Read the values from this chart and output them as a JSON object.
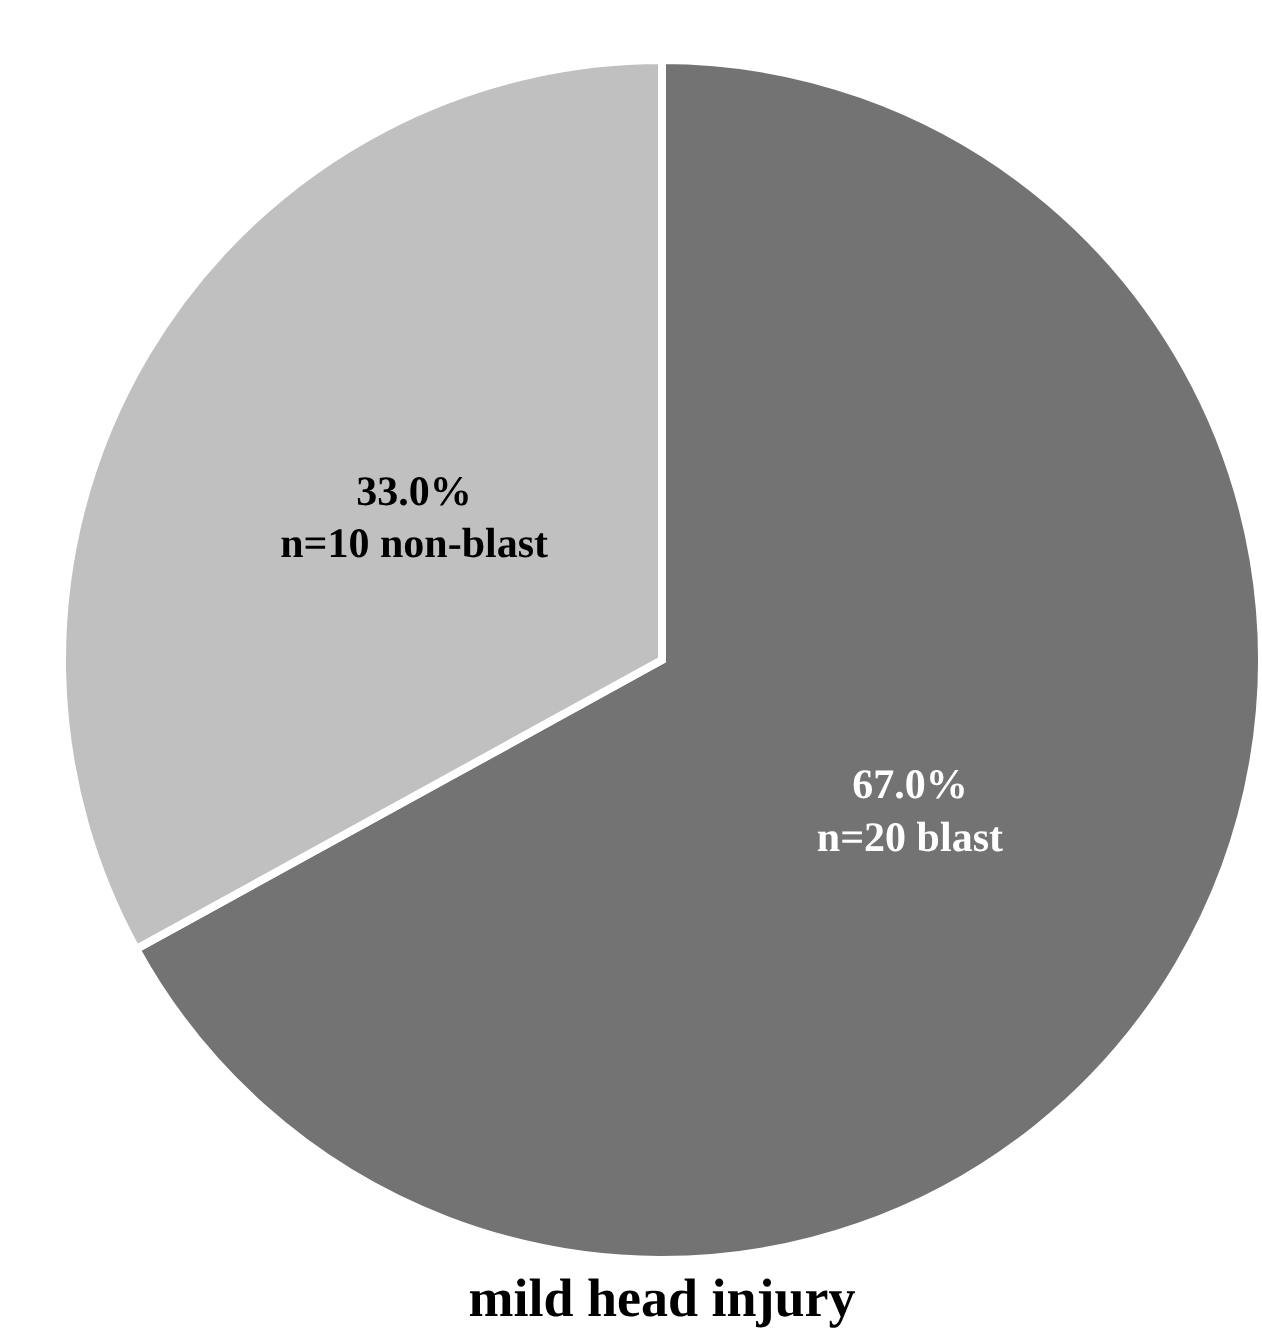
{
  "chart_data": {
    "type": "pie",
    "title": "mild head injury",
    "categories": [
      "n=20 blast",
      "n=10 non-blast"
    ],
    "values": [
      67.0,
      33.0
    ],
    "value_labels": [
      "67.0%",
      "33.0%"
    ],
    "colors": [
      "#737373",
      "#c0c0c0"
    ],
    "legend": false
  }
}
